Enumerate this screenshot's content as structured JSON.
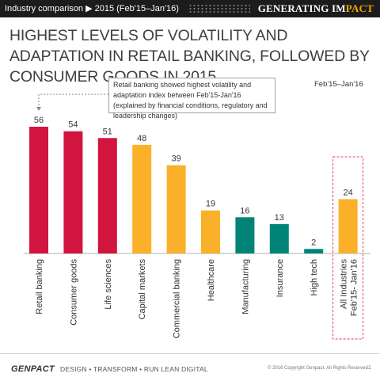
{
  "header": {
    "breadcrumb": "Industry comparison ▶ 2015 (Feb'15–Jan'16)",
    "brand_prefix": "GENERATING IM",
    "brand_suffix": "PACT"
  },
  "title": "HIGHEST LEVELS OF VOLATILITY AND ADAPTATION IN RETAIL BANKING, FOLLOWED BY CONSUMER GOODS IN 2015",
  "callout": "Retail banking showed highest volatility and adaptation index between Feb'15-Jan'16 (explained by financial conditions, regulatory and leadership changes)",
  "period_label": "Feb'15–Jan'16",
  "colors": {
    "red": "#d1153f",
    "orange": "#fbb02a",
    "teal": "#008478",
    "callout_border": "#a0a0a0",
    "highlight_border": "#e8424f"
  },
  "chart_data": {
    "type": "bar",
    "categories": [
      "Retail banking",
      "Consumer goods",
      "Life sciences",
      "Capital markets",
      "Commercial banking",
      "Healthcare",
      "Manufacturing",
      "Insurance",
      "High tech",
      "All Industries Feb'15- Jan'16"
    ],
    "category_lines": [
      [
        "Retail banking"
      ],
      [
        "Consumer goods"
      ],
      [
        "Life sciences"
      ],
      [
        "Capital markets"
      ],
      [
        "Commercial banking"
      ],
      [
        "Healthcare"
      ],
      [
        "Manufacturing"
      ],
      [
        "Insurance"
      ],
      [
        "High tech"
      ],
      [
        "All Industries",
        "Feb'15- Jan'16"
      ]
    ],
    "values": [
      56,
      54,
      51,
      48,
      39,
      19,
      16,
      13,
      2,
      24
    ],
    "bar_colors": [
      "#d1153f",
      "#d1153f",
      "#d1153f",
      "#fbb02a",
      "#fbb02a",
      "#fbb02a",
      "#008478",
      "#008478",
      "#008478",
      "#fbb02a"
    ],
    "highlighted_category": "All Industries Feb'15- Jan'16",
    "ylim": [
      0,
      56
    ],
    "grid": false,
    "legend": "none",
    "xlabel": "",
    "ylabel": ""
  },
  "footer": {
    "logo": "GENPACT",
    "tagline": "DESIGN • TRANSFORM • RUN LEAN DIGITAL",
    "copyright": "© 2016 Copyright Genpact. All Rights Reserved.",
    "page": "1"
  }
}
